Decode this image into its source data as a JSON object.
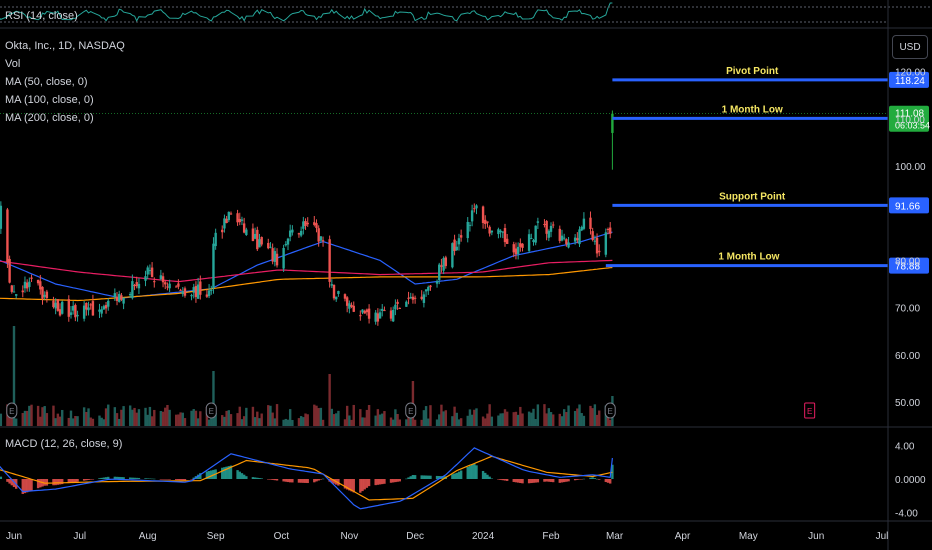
{
  "panes": {
    "rsi": {
      "label": "RSI (14, close)"
    },
    "main": {
      "legend": [
        "Okta, Inc., 1D, NASDAQ",
        "Vol",
        "MA (50, close, 0)",
        "MA (100, close, 0)",
        "MA (200, close, 0)"
      ],
      "currency": "USD"
    },
    "macd": {
      "label": "MACD (12, 26, close, 9)"
    }
  },
  "chart_data": [
    {
      "type": "candlestick",
      "title": "Okta, Inc., 1D, NASDAQ",
      "ylim": [
        44,
        123
      ],
      "y_ticks": [
        "120.00",
        "110.00",
        "100.00",
        "80.00",
        "70.00",
        "60.00",
        "50.00"
      ],
      "x_ticks": [
        "Jun",
        "Jul",
        "Aug",
        "Sep",
        "Oct",
        "Nov",
        "Dec",
        "2024",
        "Feb",
        "Mar",
        "Apr",
        "May",
        "Jun",
        "Jul"
      ],
      "close_anchors": [
        {
          "date": "2023-05-23",
          "close": 84
        },
        {
          "date": "2023-05-26",
          "close": 90
        },
        {
          "date": "2023-05-31",
          "close": 73
        },
        {
          "date": "2023-06-09",
          "close": 75
        },
        {
          "date": "2023-06-20",
          "close": 70
        },
        {
          "date": "2023-07-05",
          "close": 69
        },
        {
          "date": "2023-07-20",
          "close": 73
        },
        {
          "date": "2023-08-01",
          "close": 77
        },
        {
          "date": "2023-08-15",
          "close": 74
        },
        {
          "date": "2023-08-30",
          "close": 73
        },
        {
          "date": "2023-08-31",
          "close": 85
        },
        {
          "date": "2023-09-08",
          "close": 90
        },
        {
          "date": "2023-09-15",
          "close": 86
        },
        {
          "date": "2023-09-29",
          "close": 80
        },
        {
          "date": "2023-10-05",
          "close": 85
        },
        {
          "date": "2023-10-12",
          "close": 88
        },
        {
          "date": "2023-10-20",
          "close": 84
        },
        {
          "date": "2023-10-23",
          "close": 74
        },
        {
          "date": "2023-11-03",
          "close": 70
        },
        {
          "date": "2023-11-15",
          "close": 68
        },
        {
          "date": "2023-12-01",
          "close": 72
        },
        {
          "date": "2023-12-08",
          "close": 75
        },
        {
          "date": "2023-12-15",
          "close": 80
        },
        {
          "date": "2023-12-22",
          "close": 86
        },
        {
          "date": "2023-12-29",
          "close": 91
        },
        {
          "date": "2024-01-05",
          "close": 86
        },
        {
          "date": "2024-01-12",
          "close": 84
        },
        {
          "date": "2024-01-19",
          "close": 82
        },
        {
          "date": "2024-01-26",
          "close": 87
        },
        {
          "date": "2024-02-02",
          "close": 86
        },
        {
          "date": "2024-02-09",
          "close": 83
        },
        {
          "date": "2024-02-16",
          "close": 88
        },
        {
          "date": "2024-02-23",
          "close": 82
        },
        {
          "date": "2024-02-28",
          "close": 87
        },
        {
          "date": "2024-02-29",
          "close": 111.08
        }
      ],
      "series": [
        {
          "name": "MA (50, close, 0)",
          "color": "#2962ff",
          "anchors": [
            {
              "date": "2023-05-23",
              "value": 80.5
            },
            {
              "date": "2023-06-20",
              "value": 75
            },
            {
              "date": "2023-07-20",
              "value": 72
            },
            {
              "date": "2023-08-30",
              "value": 74
            },
            {
              "date": "2023-09-20",
              "value": 79
            },
            {
              "date": "2023-10-20",
              "value": 84
            },
            {
              "date": "2023-11-15",
              "value": 80
            },
            {
              "date": "2023-12-01",
              "value": 75
            },
            {
              "date": "2023-12-20",
              "value": 76
            },
            {
              "date": "2024-01-15",
              "value": 81
            },
            {
              "date": "2024-02-15",
              "value": 84
            },
            {
              "date": "2024-02-29",
              "value": 86
            }
          ]
        },
        {
          "name": "MA (100, close, 0)",
          "color": "#e91e63",
          "anchors": [
            {
              "date": "2023-05-23",
              "value": 80
            },
            {
              "date": "2023-07-01",
              "value": 77.5
            },
            {
              "date": "2023-08-15",
              "value": 75.5
            },
            {
              "date": "2023-09-30",
              "value": 78
            },
            {
              "date": "2023-11-15",
              "value": 77
            },
            {
              "date": "2023-12-31",
              "value": 77.5
            },
            {
              "date": "2024-01-31",
              "value": 79.5
            },
            {
              "date": "2024-02-29",
              "value": 80
            }
          ]
        },
        {
          "name": "MA (200, close, 0)",
          "color": "#ff9800",
          "anchors": [
            {
              "date": "2023-05-23",
              "value": 72
            },
            {
              "date": "2023-07-01",
              "value": 71.5
            },
            {
              "date": "2023-08-15",
              "value": 73
            },
            {
              "date": "2023-09-30",
              "value": 76
            },
            {
              "date": "2023-11-15",
              "value": 76.5
            },
            {
              "date": "2023-12-31",
              "value": 76.5
            },
            {
              "date": "2024-01-31",
              "value": 77
            },
            {
              "date": "2024-02-29",
              "value": 78.5
            }
          ]
        }
      ],
      "levels": [
        {
          "label": "Pivot Point",
          "value": 118.24,
          "price_label": "118.24",
          "start": "2024-02-29",
          "label_color": "#f5e663"
        },
        {
          "label": "1 Month Low",
          "value": 110.1,
          "price_label": "110.10",
          "start": "2024-02-29",
          "label_color": "#f5e663"
        },
        {
          "label": "Support Point",
          "value": 91.66,
          "price_label": "91.66",
          "start": "2024-02-29",
          "label_color": "#f5e663"
        },
        {
          "label": "1 Month Low",
          "value": 78.88,
          "price_label": "78.88",
          "start": "2024-02-26",
          "label_color": "#f5e663"
        }
      ],
      "last_price": {
        "value": 111.08,
        "label": "111.08",
        "countdown": "06:03:54",
        "color": "#22ab3e"
      },
      "earnings_markers": [
        "2023-05-31",
        "2023-08-30",
        "2023-11-29",
        "2024-02-28",
        "2024-05-29"
      ],
      "up_color": "#26a69a",
      "down_color": "#ef5350",
      "grid": false
    },
    {
      "type": "bar",
      "name": "Vol",
      "spikes": [
        {
          "date": "2023-06-01",
          "value": 1.0
        },
        {
          "date": "2023-08-31",
          "value": 0.55
        },
        {
          "date": "2023-10-23",
          "value": 0.52
        },
        {
          "date": "2023-11-30",
          "value": 0.45
        },
        {
          "date": "2024-02-29",
          "value": 0.3
        }
      ]
    },
    {
      "type": "line",
      "title": "MACD (12, 26, close, 9)",
      "ylim": [
        -4.5,
        4.5
      ],
      "y_ticks": [
        "4.00",
        "0.0000",
        "-4.00"
      ],
      "series": [
        {
          "name": "MACD",
          "color": "#2962ff",
          "anchors": [
            {
              "date": "2023-05-23",
              "value": 2.2
            },
            {
              "date": "2023-06-05",
              "value": -1.5
            },
            {
              "date": "2023-06-20",
              "value": -1.2
            },
            {
              "date": "2023-07-15",
              "value": 0.0
            },
            {
              "date": "2023-08-20",
              "value": -0.4
            },
            {
              "date": "2023-09-08",
              "value": 3.0
            },
            {
              "date": "2023-10-05",
              "value": 1.2
            },
            {
              "date": "2023-10-20",
              "value": 0.6
            },
            {
              "date": "2023-11-05",
              "value": -3.6
            },
            {
              "date": "2023-11-25",
              "value": -2.6
            },
            {
              "date": "2023-12-15",
              "value": 0.5
            },
            {
              "date": "2023-12-28",
              "value": 3.7
            },
            {
              "date": "2024-01-20",
              "value": 1.0
            },
            {
              "date": "2024-02-05",
              "value": 0.2
            },
            {
              "date": "2024-02-20",
              "value": 0.5
            },
            {
              "date": "2024-02-28",
              "value": 0.2
            },
            {
              "date": "2024-02-29",
              "value": 2.5
            }
          ]
        },
        {
          "name": "Signal",
          "color": "#ff9800",
          "anchors": [
            {
              "date": "2023-05-23",
              "value": 1.3
            },
            {
              "date": "2023-06-15",
              "value": -0.5
            },
            {
              "date": "2023-07-15",
              "value": -0.3
            },
            {
              "date": "2023-08-25",
              "value": -0.2
            },
            {
              "date": "2023-09-15",
              "value": 2.2
            },
            {
              "date": "2023-10-15",
              "value": 1.3
            },
            {
              "date": "2023-11-10",
              "value": -2.5
            },
            {
              "date": "2023-11-30",
              "value": -2.3
            },
            {
              "date": "2023-12-20",
              "value": 1.0
            },
            {
              "date": "2024-01-05",
              "value": 2.7
            },
            {
              "date": "2024-01-30",
              "value": 0.8
            },
            {
              "date": "2024-02-20",
              "value": 0.3
            },
            {
              "date": "2024-02-29",
              "value": 0.8
            }
          ]
        }
      ]
    },
    {
      "type": "line",
      "title": "RSI (14, close)",
      "color": "#26a69a",
      "note": "strip shows the lower part of the RSI pane; the line rises sharply at the last bar"
    }
  ]
}
